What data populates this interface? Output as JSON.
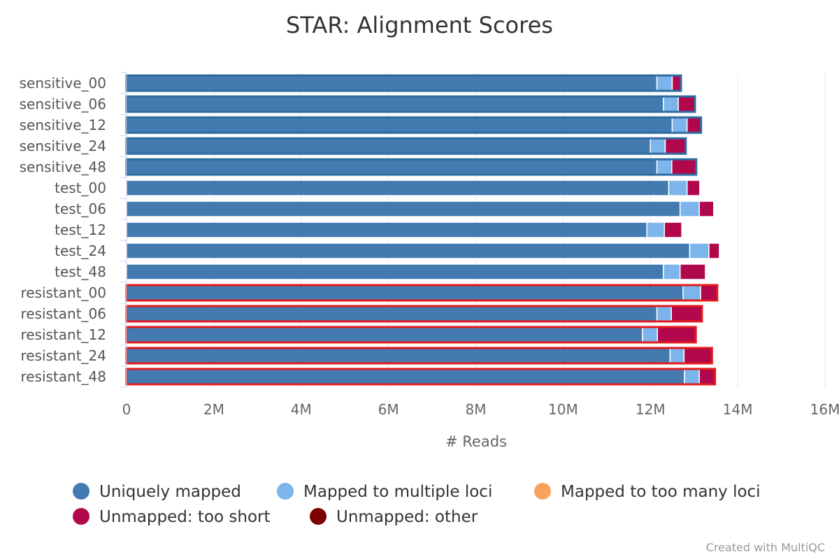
{
  "chart_data": {
    "type": "bar",
    "orientation": "horizontal",
    "stacked": true,
    "title": "STAR: Alignment Scores",
    "xlabel": "# Reads",
    "xlim": [
      0,
      16000000
    ],
    "x_ticks": [
      0,
      2000000,
      4000000,
      6000000,
      8000000,
      10000000,
      12000000,
      14000000,
      16000000
    ],
    "x_tick_labels": [
      "0",
      "2M",
      "4M",
      "6M",
      "8M",
      "10M",
      "12M",
      "14M",
      "16M"
    ],
    "categories": [
      "sensitive_00",
      "sensitive_06",
      "sensitive_12",
      "sensitive_24",
      "sensitive_48",
      "test_00",
      "test_06",
      "test_12",
      "test_24",
      "test_48",
      "resistant_00",
      "resistant_06",
      "resistant_12",
      "resistant_24",
      "resistant_48"
    ],
    "highlight": {
      "sensitive_00": "#2e6ba0",
      "sensitive_06": "#2e6ba0",
      "sensitive_12": "#2e6ba0",
      "sensitive_24": "#2e6ba0",
      "sensitive_48": "#2e6ba0",
      "resistant_00": "#e31a1c",
      "resistant_06": "#e31a1c",
      "resistant_12": "#e31a1c",
      "resistant_24": "#e31a1c",
      "resistant_48": "#e31a1c"
    },
    "series": [
      {
        "name": "Uniquely mapped",
        "color": "#437bb1",
        "values": [
          12150000,
          12300000,
          12500000,
          12000000,
          12150000,
          12420000,
          12680000,
          11920000,
          12900000,
          12300000,
          12750000,
          12150000,
          11820000,
          12450000,
          12780000
        ]
      },
      {
        "name": "Mapped to multiple loci",
        "color": "#7cb5ec",
        "values": [
          350000,
          340000,
          340000,
          340000,
          340000,
          420000,
          440000,
          400000,
          440000,
          380000,
          400000,
          330000,
          340000,
          320000,
          340000
        ]
      },
      {
        "name": "Mapped to too many loci",
        "color": "#f7a35c",
        "values": [
          0,
          0,
          0,
          0,
          0,
          0,
          0,
          0,
          0,
          0,
          0,
          0,
          0,
          0,
          0
        ]
      },
      {
        "name": "Unmapped: too short",
        "color": "#b1084c",
        "values": [
          200000,
          380000,
          320000,
          470000,
          560000,
          290000,
          330000,
          400000,
          240000,
          580000,
          380000,
          700000,
          880000,
          640000,
          360000
        ]
      },
      {
        "name": "Unmapped: other",
        "color": "#7f0000",
        "values": [
          0,
          0,
          0,
          0,
          0,
          0,
          0,
          0,
          0,
          0,
          0,
          0,
          0,
          0,
          0
        ]
      }
    ],
    "grid": true,
    "legend_position": "bottom"
  },
  "footer": {
    "credit": "Created with MultiQC"
  }
}
